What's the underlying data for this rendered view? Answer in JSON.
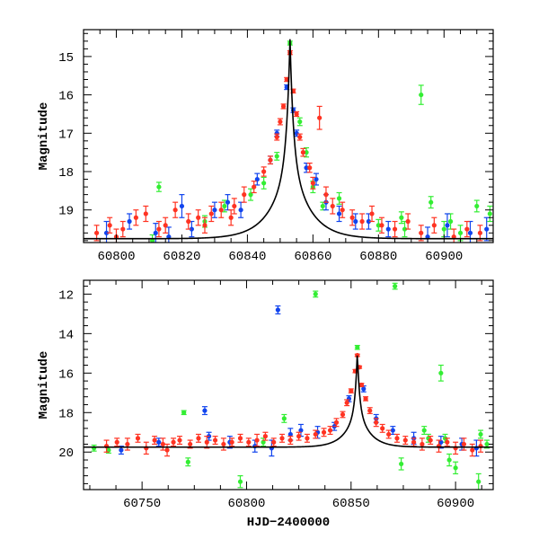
{
  "colors": {
    "green": "#33ee33",
    "blue": "#1144ee",
    "red": "#ff3322",
    "model": "#000000"
  },
  "chart_data": [
    {
      "type": "scatter",
      "xlabel": "",
      "ylabel": "Magnitude",
      "xlim": [
        60790,
        60915
      ],
      "ylim": [
        19.85,
        14.3
      ],
      "y_inverted": true,
      "x_ticks": [
        60800,
        60820,
        60840,
        60860,
        60880,
        60900
      ],
      "y_ticks": [
        15,
        16,
        17,
        18,
        19
      ],
      "x_tick_labels": [
        "60800",
        "60820",
        "60840",
        "60860",
        "60880",
        "60900"
      ],
      "y_tick_labels": [
        "15",
        "16",
        "17",
        "18",
        "19"
      ],
      "model": {
        "baseline": 19.75,
        "peak_x": 60853,
        "peak_mag": 14.55,
        "tau": 1.0,
        "t_E": 5.5
      },
      "series": [
        {
          "color": "green",
          "points": [
            [
              60853,
              14.65,
              0.05
            ],
            [
              60893,
              16.0,
              0.25
            ],
            [
              60813,
              18.4,
              0.12
            ],
            [
              60845,
              18.3,
              0.15
            ],
            [
              60860,
              18.4,
              0.15
            ],
            [
              60863,
              18.9,
              0.1
            ],
            [
              60887,
              19.2,
              0.15
            ],
            [
              60896,
              18.8,
              0.15
            ],
            [
              60910,
              18.9,
              0.15
            ],
            [
              60914,
              19.1,
              0.2
            ],
            [
              60858,
              17.5,
              0.12
            ],
            [
              60900,
              19.5,
              0.2
            ],
            [
              60849,
              17.6,
              0.1
            ],
            [
              60856,
              16.7,
              0.1
            ],
            [
              60902,
              19.3,
              0.2
            ],
            [
              60888,
              19.5,
              0.2
            ],
            [
              60905,
              19.6,
              0.2
            ],
            [
              60827,
              19.3,
              0.15
            ],
            [
              60811,
              19.8,
              0.15
            ],
            [
              60868,
              18.7,
              0.15
            ],
            [
              60841,
              18.6,
              0.15
            ],
            [
              60880,
              19.4,
              0.15
            ],
            [
              60833,
              18.9,
              0.15
            ]
          ]
        },
        {
          "color": "blue",
          "points": [
            [
              60812,
              19.6,
              0.25
            ],
            [
              60820,
              18.9,
              0.3
            ],
            [
              60830,
              19.0,
              0.2
            ],
            [
              60834,
              18.8,
              0.2
            ],
            [
              60843,
              18.2,
              0.15
            ],
            [
              60847,
              17.7,
              0.1
            ],
            [
              60849,
              17.0,
              0.08
            ],
            [
              60855,
              17.0,
              0.08
            ],
            [
              60858,
              17.9,
              0.12
            ],
            [
              60861,
              18.2,
              0.15
            ],
            [
              60864,
              18.8,
              0.2
            ],
            [
              60868,
              19.1,
              0.2
            ],
            [
              60873,
              19.3,
              0.2
            ],
            [
              60883,
              19.5,
              0.2
            ],
            [
              60901,
              19.4,
              0.3
            ],
            [
              60908,
              19.6,
              0.3
            ],
            [
              60797,
              19.6,
              0.3
            ],
            [
              60804,
              19.3,
              0.2
            ],
            [
              60816,
              19.7,
              0.25
            ],
            [
              60823,
              19.5,
              0.2
            ],
            [
              60838,
              19.0,
              0.2
            ],
            [
              60852,
              15.8,
              0.06
            ],
            [
              60854,
              16.4,
              0.06
            ],
            [
              60877,
              19.3,
              0.2
            ],
            [
              60895,
              19.7,
              0.25
            ],
            [
              60913,
              19.5,
              0.3
            ]
          ]
        },
        {
          "color": "red",
          "points": [
            [
              60794,
              19.6,
              0.2
            ],
            [
              60798,
              19.4,
              0.2
            ],
            [
              60802,
              19.5,
              0.2
            ],
            [
              60806,
              19.2,
              0.2
            ],
            [
              60809,
              19.1,
              0.2
            ],
            [
              60815,
              19.4,
              0.2
            ],
            [
              60818,
              19.0,
              0.2
            ],
            [
              60822,
              19.3,
              0.2
            ],
            [
              60825,
              19.2,
              0.2
            ],
            [
              60829,
              19.1,
              0.2
            ],
            [
              60832,
              19.0,
              0.2
            ],
            [
              60836,
              18.9,
              0.2
            ],
            [
              60839,
              18.6,
              0.2
            ],
            [
              60842,
              18.4,
              0.15
            ],
            [
              60845,
              18.0,
              0.12
            ],
            [
              60847,
              17.7,
              0.1
            ],
            [
              60849,
              17.1,
              0.08
            ],
            [
              60850,
              16.7,
              0.08
            ],
            [
              60851,
              16.3,
              0.06
            ],
            [
              60852,
              15.6,
              0.05
            ],
            [
              60853,
              14.9,
              0.05
            ],
            [
              60854,
              15.9,
              0.05
            ],
            [
              60855,
              16.5,
              0.06
            ],
            [
              60856,
              17.1,
              0.08
            ],
            [
              60857,
              17.5,
              0.1
            ],
            [
              60859,
              17.9,
              0.12
            ],
            [
              60860,
              18.3,
              0.15
            ],
            [
              60862,
              16.6,
              0.3
            ],
            [
              60864,
              18.6,
              0.2
            ],
            [
              60866,
              18.9,
              0.2
            ],
            [
              60869,
              19.0,
              0.2
            ],
            [
              60872,
              19.2,
              0.2
            ],
            [
              60875,
              19.3,
              0.2
            ],
            [
              60878,
              19.1,
              0.2
            ],
            [
              60881,
              19.4,
              0.2
            ],
            [
              60885,
              19.5,
              0.2
            ],
            [
              60889,
              19.3,
              0.2
            ],
            [
              60893,
              19.6,
              0.2
            ],
            [
              60897,
              19.4,
              0.2
            ],
            [
              60903,
              19.7,
              0.2
            ],
            [
              60907,
              19.5,
              0.2
            ],
            [
              60911,
              19.6,
              0.2
            ],
            [
              60800,
              19.7,
              0.2
            ],
            [
              60827,
              19.4,
              0.2
            ],
            [
              60835,
              19.2,
              0.2
            ],
            [
              60813,
              19.5,
              0.2
            ]
          ]
        }
      ]
    },
    {
      "type": "scatter",
      "xlabel": "HJD−2400000",
      "ylabel": "Magnitude",
      "xlim": [
        60722,
        60918
      ],
      "ylim": [
        21.9,
        11.3
      ],
      "y_inverted": true,
      "x_ticks": [
        60750,
        60800,
        60850,
        60900
      ],
      "y_ticks": [
        12,
        14,
        16,
        18,
        20
      ],
      "x_tick_labels": [
        "60750",
        "60800",
        "60850",
        "60900"
      ],
      "y_tick_labels": [
        "12",
        "14",
        "16",
        "18",
        "20"
      ],
      "model": {
        "baseline": 19.75,
        "peak_x": 60853,
        "peak_mag": 14.9,
        "tau": 1.0,
        "t_E": 5.5
      },
      "series": [
        {
          "color": "green",
          "points": [
            [
              60727,
              19.8,
              0.15
            ],
            [
              60734,
              19.9,
              0.15
            ],
            [
              60770,
              18.0,
              0.1
            ],
            [
              60772,
              20.5,
              0.2
            ],
            [
              60797,
              21.5,
              0.3
            ],
            [
              60833,
              12.0,
              0.15
            ],
            [
              60853,
              14.7,
              0.1
            ],
            [
              60871,
              11.6,
              0.15
            ],
            [
              60874,
              20.6,
              0.3
            ],
            [
              60893,
              16.0,
              0.4
            ],
            [
              60895,
              19.3,
              0.2
            ],
            [
              60897,
              20.4,
              0.3
            ],
            [
              60900,
              20.8,
              0.3
            ],
            [
              60911,
              21.5,
              0.4
            ],
            [
              60912,
              19.1,
              0.2
            ],
            [
              60915,
              19.6,
              0.2
            ],
            [
              60818,
              18.3,
              0.2
            ],
            [
              60808,
              19.5,
              0.2
            ],
            [
              60885,
              18.9,
              0.2
            ],
            [
              60887,
              19.3,
              0.2
            ]
          ]
        },
        {
          "color": "blue",
          "points": [
            [
              60740,
              19.9,
              0.2
            ],
            [
              60758,
              19.5,
              0.2
            ],
            [
              60780,
              17.9,
              0.2
            ],
            [
              60782,
              19.2,
              0.2
            ],
            [
              60792,
              19.5,
              0.3
            ],
            [
              60804,
              19.7,
              0.3
            ],
            [
              60812,
              19.8,
              0.4
            ],
            [
              60815,
              12.8,
              0.2
            ],
            [
              60821,
              19.1,
              0.3
            ],
            [
              60826,
              18.9,
              0.3
            ],
            [
              60834,
              19.0,
              0.3
            ],
            [
              60842,
              18.7,
              0.2
            ],
            [
              60849,
              17.3,
              0.15
            ],
            [
              60856,
              16.8,
              0.15
            ],
            [
              60862,
              18.3,
              0.2
            ],
            [
              60870,
              18.9,
              0.2
            ],
            [
              60880,
              19.3,
              0.3
            ],
            [
              60893,
              19.5,
              0.3
            ],
            [
              60903,
              19.6,
              0.3
            ],
            [
              60910,
              19.8,
              0.4
            ]
          ]
        },
        {
          "color": "red",
          "points": [
            [
              60733,
              19.7,
              0.3
            ],
            [
              60738,
              19.5,
              0.2
            ],
            [
              60743,
              19.6,
              0.3
            ],
            [
              60748,
              19.3,
              0.2
            ],
            [
              60752,
              19.8,
              0.3
            ],
            [
              60756,
              19.4,
              0.2
            ],
            [
              60760,
              19.6,
              0.3
            ],
            [
              60765,
              19.5,
              0.2
            ],
            [
              60768,
              19.4,
              0.2
            ],
            [
              60773,
              19.6,
              0.2
            ],
            [
              60777,
              19.3,
              0.2
            ],
            [
              60781,
              19.5,
              0.3
            ],
            [
              60785,
              19.4,
              0.2
            ],
            [
              60789,
              19.6,
              0.3
            ],
            [
              60793,
              19.5,
              0.2
            ],
            [
              60797,
              19.3,
              0.2
            ],
            [
              60801,
              19.5,
              0.2
            ],
            [
              60805,
              19.4,
              0.3
            ],
            [
              60809,
              19.2,
              0.2
            ],
            [
              60813,
              19.5,
              0.2
            ],
            [
              60817,
              19.3,
              0.2
            ],
            [
              60821,
              19.4,
              0.2
            ],
            [
              60825,
              19.2,
              0.2
            ],
            [
              60829,
              19.3,
              0.2
            ],
            [
              60833,
              19.1,
              0.2
            ],
            [
              60837,
              19.0,
              0.2
            ],
            [
              60840,
              18.9,
              0.2
            ],
            [
              60843,
              18.5,
              0.2
            ],
            [
              60846,
              18.1,
              0.15
            ],
            [
              60848,
              17.5,
              0.15
            ],
            [
              60850,
              16.9,
              0.1
            ],
            [
              60852,
              15.9,
              0.08
            ],
            [
              60853,
              15.1,
              0.06
            ],
            [
              60854,
              15.7,
              0.06
            ],
            [
              60855,
              16.6,
              0.08
            ],
            [
              60857,
              17.3,
              0.1
            ],
            [
              60859,
              17.9,
              0.15
            ],
            [
              60862,
              18.5,
              0.2
            ],
            [
              60865,
              18.8,
              0.2
            ],
            [
              60868,
              19.1,
              0.2
            ],
            [
              60872,
              19.3,
              0.2
            ],
            [
              60876,
              19.4,
              0.2
            ],
            [
              60880,
              19.5,
              0.2
            ],
            [
              60884,
              19.6,
              0.3
            ],
            [
              60888,
              19.4,
              0.2
            ],
            [
              60892,
              19.7,
              0.3
            ],
            [
              60896,
              19.5,
              0.2
            ],
            [
              60900,
              19.8,
              0.3
            ],
            [
              60904,
              19.6,
              0.3
            ],
            [
              60908,
              19.9,
              0.3
            ],
            [
              60912,
              19.7,
              0.3
            ],
            [
              60762,
              19.9,
              0.3
            ]
          ]
        }
      ]
    }
  ]
}
